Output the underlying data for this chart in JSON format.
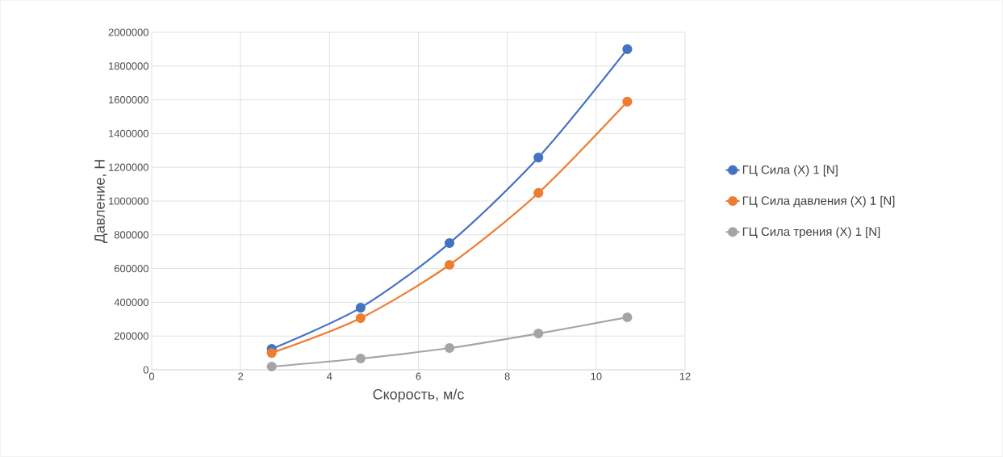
{
  "chart_data": {
    "type": "line",
    "xlabel": "Скорость, м/с",
    "ylabel": "Давление, Н",
    "x": [
      2.7,
      4.7,
      6.7,
      8.7,
      10.7
    ],
    "series": [
      {
        "name": "ГЦ Сила (X) 1 [N]",
        "color": "#4472c4",
        "values": [
          124000,
          368000,
          751000,
          1258000,
          1900000
        ]
      },
      {
        "name": "ГЦ Сила давления (X) 1 [N]",
        "color": "#ed7d31",
        "values": [
          100000,
          306000,
          622000,
          1048000,
          1589000
        ]
      },
      {
        "name": "ГЦ Сила трения (X) 1 [N]",
        "color": "#a5a5a5",
        "values": [
          19000,
          67000,
          129000,
          215000,
          311000
        ]
      }
    ],
    "xlim": [
      0,
      12
    ],
    "xticks": [
      0,
      2,
      4,
      6,
      8,
      10,
      12
    ],
    "ylim": [
      0,
      2000000
    ],
    "yticks": [
      0,
      200000,
      400000,
      600000,
      800000,
      1000000,
      1200000,
      1400000,
      1600000,
      1800000,
      2000000
    ],
    "grid": true,
    "legend": "right",
    "marker": "circle",
    "line_style": "solid"
  }
}
